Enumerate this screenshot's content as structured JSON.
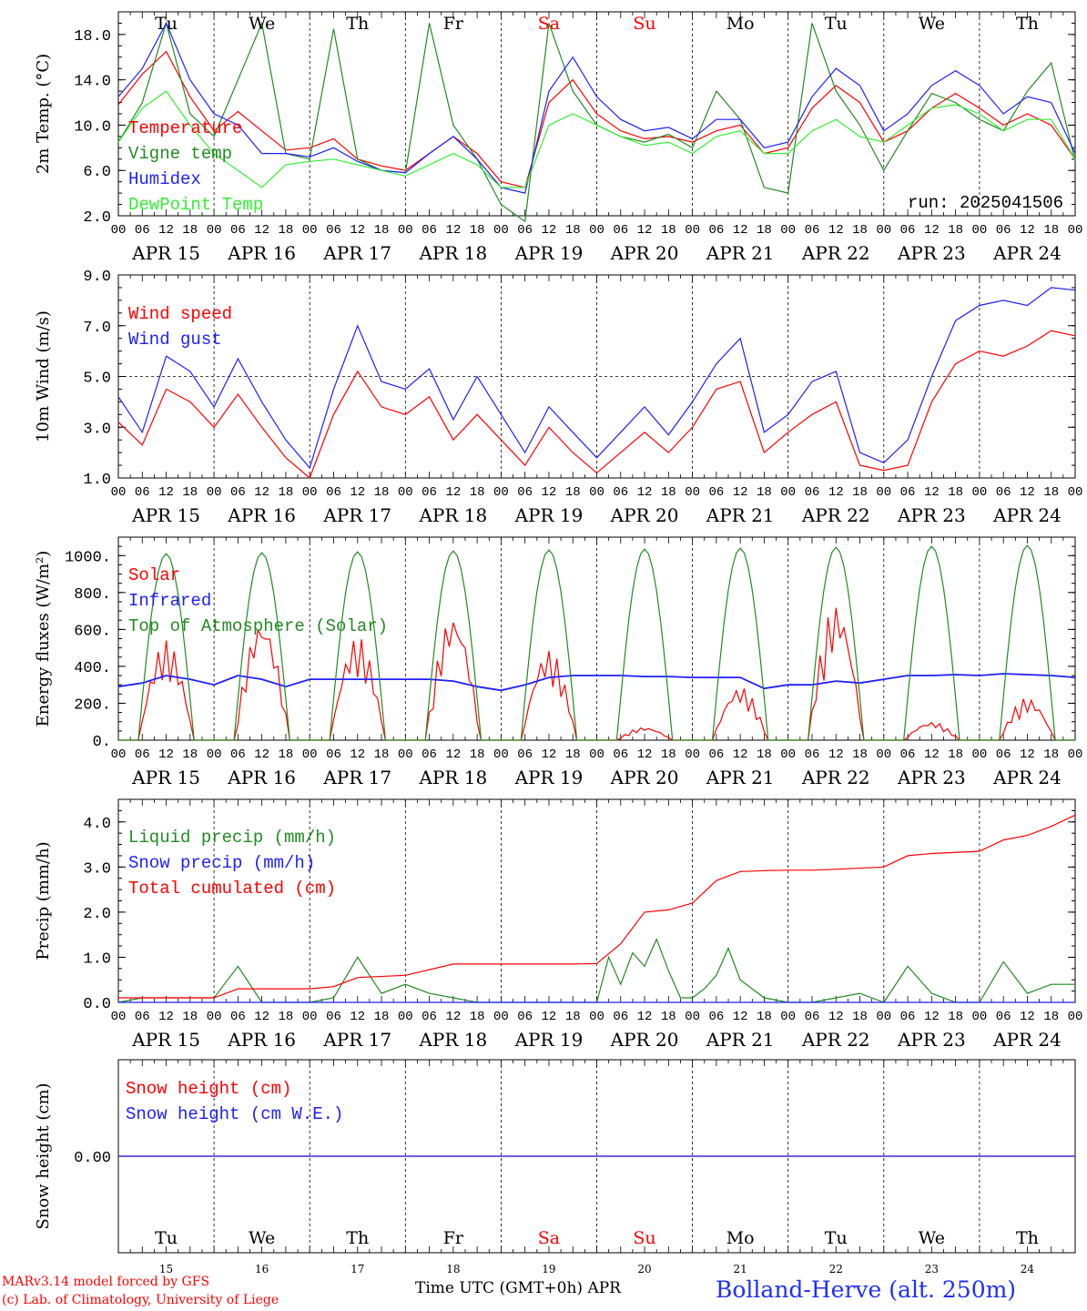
{
  "meta": {
    "run_label": "run: 2025041506",
    "model_credit": "MARv3.14 model forced by GFS",
    "lab_credit": "(c) Lab. of Climatology, University of Liege",
    "xaxis_title": "Time UTC (GMT+0h) APR",
    "station": "Bolland-Herve (alt. 250m)"
  },
  "timeline": {
    "hour_ticks": [
      "00",
      "06",
      "12",
      "18"
    ],
    "dates": [
      "APR 15",
      "APR 16",
      "APR 17",
      "APR 18",
      "APR 19",
      "APR 20",
      "APR 21",
      "APR 22",
      "APR 23",
      "APR 24"
    ],
    "weekdays": [
      "Tu",
      "We",
      "Th",
      "Fr",
      "Sa",
      "Su",
      "Mo",
      "Tu",
      "We",
      "Th"
    ],
    "weekend_color": "#ff0000",
    "day_numbers": [
      "15",
      "16",
      "17",
      "18",
      "19",
      "20",
      "21",
      "22",
      "23",
      "24"
    ]
  },
  "chart_data": [
    {
      "type": "line",
      "ylabel": "2m Temp. (°C)",
      "ylim": [
        2.0,
        20.0
      ],
      "yticks": [
        "2.0",
        "6.0",
        "10.0",
        "14.0",
        "18.0"
      ],
      "x_unit": "hours since APR 15 00 UTC",
      "legend": "top-left",
      "series": [
        {
          "name": "Temperature",
          "color": "#ff0000",
          "x": [
            0,
            6,
            12,
            18,
            24,
            30,
            36,
            42,
            48,
            54,
            60,
            66,
            72,
            78,
            84,
            90,
            96,
            102,
            108,
            114,
            120,
            126,
            132,
            138,
            144,
            150,
            156,
            162,
            168,
            174,
            180,
            186,
            192,
            198,
            204,
            210,
            216,
            222,
            228,
            234,
            240
          ],
          "values": [
            11.8,
            14.5,
            16.5,
            12.5,
            9.5,
            11.2,
            9.5,
            7.8,
            8.0,
            8.8,
            7.0,
            6.4,
            6.0,
            7.5,
            9.0,
            7.5,
            5.0,
            4.5,
            12.0,
            14.0,
            11.0,
            9.5,
            8.8,
            9.0,
            8.5,
            9.5,
            10.0,
            7.5,
            8.0,
            11.5,
            13.5,
            12.0,
            8.5,
            9.5,
            11.5,
            12.8,
            11.5,
            10.0,
            11.0,
            10.0,
            7.0
          ]
        },
        {
          "name": "Vigne temp",
          "color": "#228B22",
          "x": [
            0,
            6,
            12,
            18,
            24,
            30,
            36,
            42,
            48,
            54,
            60,
            66,
            72,
            78,
            84,
            90,
            96,
            102,
            108,
            114,
            120,
            126,
            132,
            138,
            144,
            150,
            156,
            162,
            168,
            174,
            180,
            186,
            192,
            198,
            204,
            210,
            216,
            222,
            228,
            234,
            240
          ],
          "values": [
            8.5,
            12.0,
            19.0,
            11.0,
            9.0,
            14.0,
            19.0,
            7.5,
            7.0,
            18.5,
            7.0,
            6.0,
            5.8,
            19.0,
            10.0,
            7.0,
            3.0,
            1.5,
            19.0,
            13.0,
            10.0,
            9.0,
            8.5,
            9.2,
            8.0,
            13.0,
            10.5,
            4.5,
            4.0,
            19.0,
            13.0,
            10.0,
            6.0,
            9.5,
            12.8,
            12.0,
            10.5,
            9.5,
            13.0,
            15.5,
            6.8
          ]
        },
        {
          "name": "Humidex",
          "color": "#1f1fff",
          "x": [
            0,
            6,
            12,
            18,
            24,
            30,
            36,
            42,
            48,
            54,
            60,
            66,
            72,
            78,
            84,
            90,
            96,
            102,
            108,
            114,
            120,
            126,
            132,
            138,
            144,
            150,
            156,
            162,
            168,
            174,
            180,
            186,
            192,
            198,
            204,
            210,
            216,
            222,
            228,
            234,
            240
          ],
          "values": [
            12.5,
            15.0,
            19.0,
            14.0,
            11.0,
            10.0,
            7.5,
            7.5,
            7.2,
            8.0,
            6.8,
            6.0,
            5.8,
            7.5,
            9.0,
            7.0,
            4.5,
            4.0,
            13.0,
            16.0,
            12.5,
            10.5,
            9.5,
            9.8,
            8.8,
            10.5,
            10.5,
            8.0,
            8.5,
            12.5,
            15.0,
            13.5,
            9.5,
            11.0,
            13.5,
            14.8,
            13.5,
            11.0,
            12.5,
            12.0,
            7.5
          ]
        },
        {
          "name": "DewPoint Temp",
          "color": "#33ee33",
          "x": [
            0,
            6,
            12,
            18,
            24,
            30,
            36,
            42,
            48,
            54,
            60,
            66,
            72,
            78,
            84,
            90,
            96,
            102,
            108,
            114,
            120,
            126,
            132,
            138,
            144,
            150,
            156,
            162,
            168,
            174,
            180,
            186,
            192,
            198,
            204,
            210,
            216,
            222,
            228,
            234,
            240
          ],
          "values": [
            8.5,
            11.5,
            13.0,
            10.0,
            7.5,
            6.0,
            4.5,
            6.5,
            6.8,
            7.0,
            6.5,
            6.0,
            5.5,
            6.5,
            7.5,
            6.5,
            4.5,
            4.5,
            10.0,
            11.0,
            10.0,
            9.0,
            8.2,
            8.5,
            7.5,
            9.0,
            9.5,
            7.5,
            7.5,
            9.5,
            10.5,
            9.0,
            8.5,
            10.0,
            11.5,
            11.8,
            11.0,
            9.5,
            10.5,
            10.5,
            7.0
          ]
        }
      ]
    },
    {
      "type": "line",
      "ylabel": "10m Wind (m/s)",
      "ylim": [
        1.0,
        9.0
      ],
      "yticks": [
        "1.0",
        "3.0",
        "5.0",
        "7.0",
        "9.0"
      ],
      "refline": 5.0,
      "x_unit": "hours since APR 15 00 UTC",
      "legend": "top-left",
      "series": [
        {
          "name": "Wind speed",
          "color": "#ff0000",
          "x": [
            0,
            6,
            12,
            18,
            24,
            30,
            36,
            42,
            48,
            54,
            60,
            66,
            72,
            78,
            84,
            90,
            96,
            102,
            108,
            114,
            120,
            126,
            132,
            138,
            144,
            150,
            156,
            162,
            168,
            174,
            180,
            186,
            192,
            198,
            204,
            210,
            216,
            222,
            228,
            234,
            240
          ],
          "values": [
            3.2,
            2.3,
            4.5,
            4.0,
            3.0,
            4.3,
            3.0,
            1.8,
            1.0,
            3.5,
            5.2,
            3.8,
            3.5,
            4.2,
            2.5,
            3.5,
            2.5,
            1.5,
            3.0,
            2.0,
            1.2,
            2.0,
            2.8,
            2.0,
            3.0,
            4.5,
            4.8,
            2.0,
            2.8,
            3.5,
            4.0,
            1.5,
            1.3,
            1.5,
            4.0,
            5.5,
            6.0,
            5.8,
            6.2,
            6.8,
            6.6
          ]
        },
        {
          "name": "Wind gust",
          "color": "#1f1fff",
          "x": [
            0,
            6,
            12,
            18,
            24,
            30,
            36,
            42,
            48,
            54,
            60,
            66,
            72,
            78,
            84,
            90,
            96,
            102,
            108,
            114,
            120,
            126,
            132,
            138,
            144,
            150,
            156,
            162,
            168,
            174,
            180,
            186,
            192,
            198,
            204,
            210,
            216,
            222,
            228,
            234,
            240
          ],
          "values": [
            4.2,
            2.8,
            5.8,
            5.2,
            3.8,
            5.7,
            4.0,
            2.5,
            1.4,
            4.5,
            7.0,
            4.8,
            4.5,
            5.3,
            3.3,
            5.0,
            3.5,
            2.0,
            3.8,
            2.8,
            1.8,
            2.8,
            3.8,
            2.7,
            4.0,
            5.5,
            6.5,
            2.8,
            3.5,
            4.8,
            5.2,
            2.0,
            1.6,
            2.5,
            5.0,
            7.2,
            7.8,
            8.0,
            7.8,
            8.5,
            8.4
          ]
        }
      ]
    },
    {
      "type": "line",
      "ylabel": "Energy fluxes (W/m²)",
      "ylim": [
        0,
        1100
      ],
      "yticks": [
        "0.",
        "200.",
        "400.",
        "600.",
        "800.",
        "1000."
      ],
      "x_unit": "hours since APR 15 00 UTC",
      "legend": "top-left",
      "series": [
        {
          "name": "Solar",
          "color": "#ff0000",
          "daily_peaks": [
            540,
            660,
            560,
            690,
            490,
            70,
            290,
            740,
            100,
            230
          ]
        },
        {
          "name": "Infrared",
          "color": "#1f1fff",
          "x": [
            0,
            6,
            12,
            18,
            24,
            30,
            36,
            42,
            48,
            54,
            60,
            66,
            72,
            78,
            84,
            90,
            96,
            102,
            108,
            114,
            120,
            126,
            132,
            138,
            144,
            150,
            156,
            162,
            168,
            174,
            180,
            186,
            192,
            198,
            204,
            210,
            216,
            222,
            228,
            234,
            240
          ],
          "values": [
            290,
            310,
            350,
            330,
            300,
            350,
            330,
            290,
            330,
            330,
            330,
            330,
            330,
            330,
            320,
            290,
            270,
            300,
            340,
            350,
            350,
            350,
            345,
            345,
            340,
            340,
            340,
            280,
            300,
            300,
            320,
            310,
            330,
            350,
            350,
            355,
            350,
            360,
            355,
            350,
            340
          ]
        },
        {
          "name": "Top of Atmosphere (Solar)",
          "color": "#228B22",
          "daily_peaks": [
            1010,
            1015,
            1020,
            1025,
            1030,
            1035,
            1040,
            1045,
            1050,
            1055
          ]
        }
      ]
    },
    {
      "type": "line",
      "ylabel": "Precip (mm/h)",
      "ylim": [
        0.0,
        4.5
      ],
      "yticks": [
        "0.0",
        "1.0",
        "2.0",
        "3.0",
        "4.0"
      ],
      "x_unit": "hours since APR 15 00 UTC",
      "legend": "top-left",
      "series": [
        {
          "name": "Liquid precip (mm/h)",
          "color": "#228B22",
          "x": [
            0,
            6,
            12,
            18,
            24,
            30,
            36,
            42,
            48,
            54,
            60,
            66,
            72,
            78,
            84,
            90,
            96,
            102,
            108,
            114,
            120,
            123,
            126,
            129,
            132,
            135,
            138,
            141,
            144,
            147,
            150,
            153,
            156,
            162,
            168,
            174,
            180,
            186,
            192,
            198,
            204,
            210,
            216,
            222,
            228,
            234,
            240
          ],
          "values": [
            0.0,
            0.1,
            0.1,
            0.1,
            0.1,
            0.8,
            0.0,
            0.0,
            0.0,
            0.1,
            1.0,
            0.2,
            0.4,
            0.2,
            0.1,
            0.0,
            0.0,
            0.0,
            0.0,
            0.0,
            0.0,
            1.0,
            0.4,
            1.1,
            0.8,
            1.4,
            0.7,
            0.1,
            0.1,
            0.3,
            0.6,
            1.2,
            0.5,
            0.1,
            0.0,
            0.0,
            0.1,
            0.2,
            0.0,
            0.8,
            0.2,
            0.0,
            0.0,
            0.9,
            0.2,
            0.4,
            0.4
          ]
        },
        {
          "name": "Snow precip (mm/h)",
          "color": "#1f1fff",
          "x": [
            0,
            240
          ],
          "values": [
            0.0,
            0.0
          ]
        },
        {
          "name": "Total cumulated (cm)",
          "color": "#ff0000",
          "x": [
            0,
            24,
            30,
            48,
            54,
            60,
            72,
            84,
            96,
            108,
            114,
            120,
            126,
            132,
            138,
            144,
            150,
            156,
            162,
            168,
            174,
            180,
            192,
            198,
            204,
            216,
            222,
            228,
            234,
            240
          ],
          "values": [
            0.1,
            0.1,
            0.3,
            0.3,
            0.35,
            0.55,
            0.6,
            0.85,
            0.85,
            0.85,
            0.85,
            0.86,
            1.3,
            2.0,
            2.05,
            2.2,
            2.7,
            2.9,
            2.92,
            2.93,
            2.93,
            2.95,
            3.0,
            3.25,
            3.3,
            3.35,
            3.6,
            3.7,
            3.9,
            4.15
          ]
        }
      ]
    },
    {
      "type": "line",
      "ylabel": "Snow height (cm)",
      "ylim": [
        -1.0,
        1.0
      ],
      "yticks": [
        "0.00"
      ],
      "x_unit": "hours since APR 15 00 UTC",
      "legend": "top-left",
      "series": [
        {
          "name": "Snow height (cm)",
          "color": "#ff0000",
          "x": [
            0,
            240
          ],
          "values": [
            0.0,
            0.0
          ]
        },
        {
          "name": "Snow height (cm W.E.)",
          "color": "#1f1fff",
          "x": [
            0,
            240
          ],
          "values": [
            0.0,
            0.0
          ]
        }
      ]
    }
  ]
}
